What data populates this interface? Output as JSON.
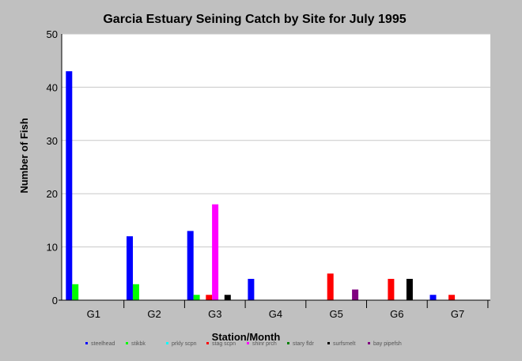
{
  "chart_data": {
    "type": "bar",
    "title": "Garcia Estuary Seining Catch by Site for July 1995",
    "xlabel": "Station/Month",
    "ylabel": "Number of Fish",
    "ylim": [
      0,
      50
    ],
    "yticks": [
      0,
      10,
      20,
      30,
      40,
      50
    ],
    "grid": true,
    "legend_position": "bottom",
    "categories": [
      "G1",
      "G2",
      "G3",
      "G4",
      "G5",
      "G6",
      "G7"
    ],
    "series": [
      {
        "name": "steelhead",
        "color": "#0000ff",
        "values": [
          43,
          12,
          13,
          4,
          0,
          0,
          1
        ]
      },
      {
        "name": "stikbk",
        "color": "#00ff00",
        "values": [
          3,
          3,
          1,
          0,
          0,
          0,
          0
        ]
      },
      {
        "name": "prkly scpn",
        "color": "#00ffff",
        "values": [
          0,
          0,
          0,
          0,
          0,
          0,
          0
        ]
      },
      {
        "name": "stag scpn",
        "color": "#ff0000",
        "values": [
          0,
          0,
          1,
          0,
          5,
          4,
          1
        ]
      },
      {
        "name": "shinr prch",
        "color": "#ff00ff",
        "values": [
          0,
          0,
          18,
          0,
          0,
          0,
          0
        ]
      },
      {
        "name": "stary fldr",
        "color": "#008000",
        "values": [
          0,
          0,
          0,
          0,
          0,
          0,
          0
        ]
      },
      {
        "name": "surfsmelt",
        "color": "#000000",
        "values": [
          0,
          0,
          1,
          0,
          0,
          4,
          0
        ]
      },
      {
        "name": "bay pipefsh",
        "color": "#800080",
        "values": [
          0,
          0,
          0,
          0,
          2,
          0,
          0
        ]
      }
    ]
  }
}
